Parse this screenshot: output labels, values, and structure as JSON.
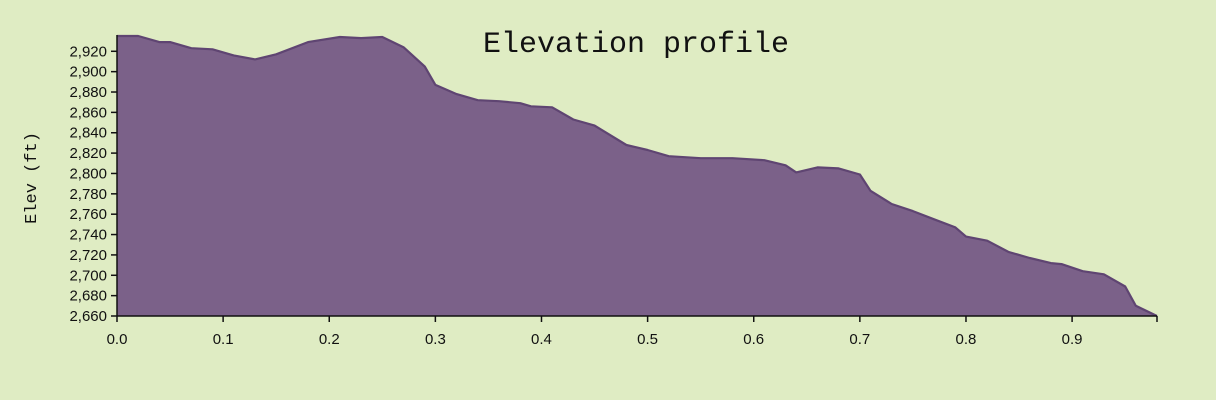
{
  "colors": {
    "background": "#dfecc3",
    "area_fill": "#7b6189",
    "area_stroke": "#5f4572",
    "axis": "#111111"
  },
  "chart_data": {
    "type": "area",
    "title": "Elevation profile",
    "xlabel": "",
    "ylabel": "Elev (ft)",
    "xlim": [
      0,
      0.98
    ],
    "ylim": [
      2660,
      2936
    ],
    "x_ticks": [
      0.0,
      0.1,
      0.2,
      0.3,
      0.4,
      0.5,
      0.6,
      0.7,
      0.8,
      0.9
    ],
    "x_tick_labels": [
      "0.0",
      "0.1",
      "0.2",
      "0.3",
      "0.4",
      "0.5",
      "0.6",
      "0.7",
      "0.8",
      "0.9"
    ],
    "y_ticks": [
      2660,
      2680,
      2700,
      2720,
      2740,
      2760,
      2780,
      2800,
      2820,
      2840,
      2860,
      2880,
      2900,
      2920
    ],
    "y_tick_labels": [
      "2,660",
      "2,680",
      "2,700",
      "2,720",
      "2,740",
      "2,760",
      "2,780",
      "2,800",
      "2,820",
      "2,840",
      "2,860",
      "2,880",
      "2,900",
      "2,920"
    ],
    "grid": false,
    "series": [
      {
        "name": "Elevation",
        "x": [
          0.0,
          0.02,
          0.04,
          0.05,
          0.07,
          0.09,
          0.11,
          0.13,
          0.15,
          0.18,
          0.21,
          0.23,
          0.25,
          0.27,
          0.29,
          0.3,
          0.32,
          0.34,
          0.36,
          0.38,
          0.39,
          0.41,
          0.43,
          0.45,
          0.48,
          0.5,
          0.52,
          0.55,
          0.58,
          0.61,
          0.63,
          0.64,
          0.66,
          0.68,
          0.7,
          0.71,
          0.73,
          0.75,
          0.77,
          0.79,
          0.8,
          0.82,
          0.84,
          0.86,
          0.88,
          0.89,
          0.91,
          0.93,
          0.95,
          0.96,
          0.98
        ],
        "values": [
          2935,
          2935,
          2929,
          2929,
          2923,
          2922,
          2916,
          2912,
          2917,
          2929,
          2934,
          2933,
          2934,
          2924,
          2905,
          2887,
          2878,
          2872,
          2871,
          2869,
          2866,
          2865,
          2853,
          2847,
          2828,
          2823,
          2817,
          2815,
          2815,
          2813,
          2808,
          2801,
          2806,
          2805,
          2799,
          2783,
          2770,
          2763,
          2755,
          2747,
          2738,
          2734,
          2723,
          2717,
          2712,
          2711,
          2704,
          2701,
          2689,
          2670,
          2660
        ]
      }
    ]
  }
}
